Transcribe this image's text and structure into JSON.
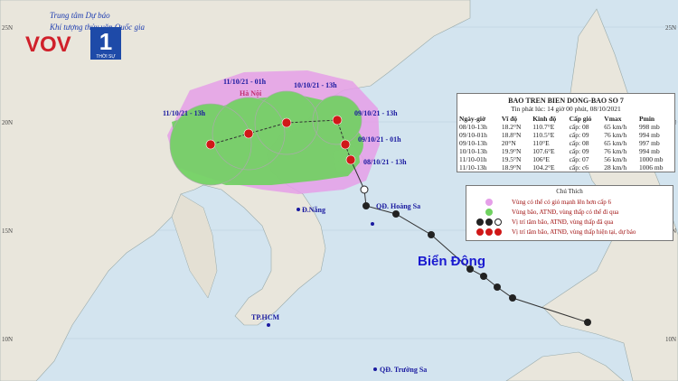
{
  "header": {
    "agency": [
      "Trung tâm Dự báo",
      "Khí tượng thủy văn Quốc gia"
    ],
    "brand": "VOV",
    "channel": "1",
    "channel_sub": "THỜI SỰ"
  },
  "map": {
    "labels": {
      "hanoi": "Hà Nội",
      "t1": "11/10/21 - 01h",
      "t2": "10/10/21 - 13h",
      "t3": "11/10/21 - 13h",
      "t4": "09/10/21 - 13h",
      "t5": "09/10/21 - 01h",
      "t6": "08/10/21 - 13h",
      "danang": "Đ.Nẵng",
      "hoangsa": "QĐ. Hoàng Sa",
      "biendong": "Biển Đông",
      "hcm": "TP.HCM",
      "truongsa": "QĐ. Trường Sa"
    },
    "latitudes": [
      "25N",
      "20N",
      "15N",
      "10N"
    ]
  },
  "info": {
    "title": "BAO TREN BIEN DONG-BAO SO 7",
    "issued": "Tin phát lúc: 14 giờ 00 phút, 08/10/2021",
    "columns": [
      "Ngày-giờ",
      "Vĩ độ",
      "Kinh độ",
      "Cấp gió",
      "Vmax",
      "Pmin"
    ],
    "rows": [
      [
        "08/10-13h",
        "18.2°N",
        "110.7°E",
        "cấp: 08",
        "65 km/h",
        "998 mb"
      ],
      [
        "09/10-01h",
        "18.8°N",
        "110.5°E",
        "cấp: 09",
        "76 km/h",
        "994 mb"
      ],
      [
        "09/10-13h",
        "20°N",
        "110°E",
        "cấp: 08",
        "65 km/h",
        "997 mb"
      ],
      [
        "10/10-13h",
        "19.9°N",
        "107.6°E",
        "cấp: 09",
        "76 km/h",
        "994 mb"
      ],
      [
        "11/10-01h",
        "19.5°N",
        "106°E",
        "cấp: 07",
        "56 km/h",
        "1000 mb"
      ],
      [
        "11/10-13h",
        "18.9°N",
        "104.2°E",
        "cấp: c6",
        "28 km/h",
        "1006 mb"
      ]
    ]
  },
  "legend": {
    "title": "Chú Thích",
    "items": [
      "Vùng có thể có gió mạnh lên hơn cấp 6",
      "Vùng bão, ATNĐ, vùng thấp có thể đi qua",
      "Vị trí tâm bão, ATNĐ, vùng thấp đã qua",
      "Vị trí tâm bão, ATNĐ, vùng thấp hiện tại, dự báo"
    ]
  }
}
